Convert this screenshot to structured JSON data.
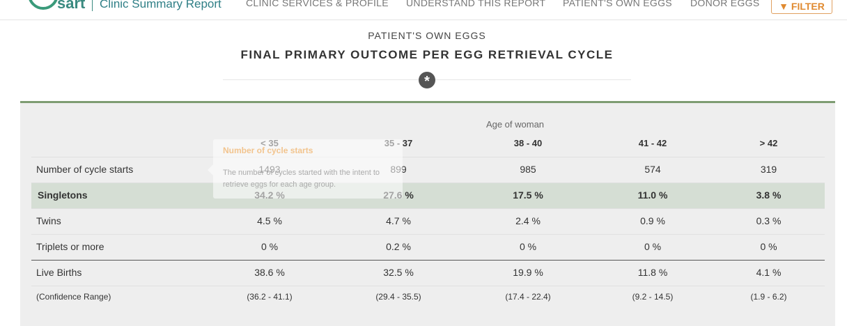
{
  "header": {
    "logo": "sart",
    "report": "Clinic Summary Report",
    "nav": [
      "CLINIC SERVICES & PROFILE",
      "UNDERSTAND THIS REPORT",
      "PATIENT'S OWN EGGS",
      "DONOR EGGS"
    ],
    "filter": "FILTER"
  },
  "section": {
    "subtitle": "PATIENT'S OWN EGGS",
    "title": "FINAL PRIMARY OUTCOME PER EGG RETRIEVAL CYCLE"
  },
  "table": {
    "group_header": "Age of woman",
    "columns": [
      "< 35",
      "35 - 37",
      "38 - 40",
      "41 - 42",
      "> 42"
    ],
    "rows": [
      {
        "label": "Number of cycle starts",
        "cells": [
          "1493",
          "899",
          "985",
          "574",
          "319"
        ]
      },
      {
        "label": "Singletons",
        "cells": [
          "34.2 %",
          "27.6 %",
          "17.5 %",
          "11.0 %",
          "3.8 %"
        ]
      },
      {
        "label": "Twins",
        "cells": [
          "4.5 %",
          "4.7 %",
          "2.4 %",
          "0.9 %",
          "0.3 %"
        ]
      },
      {
        "label": "Triplets or more",
        "cells": [
          "0 %",
          "0.2 %",
          "0 %",
          "0 %",
          "0 %"
        ]
      },
      {
        "label": "Live Births",
        "cells": [
          "38.6 %",
          "32.5 %",
          "19.9 %",
          "11.8 %",
          "4.1 %"
        ]
      },
      {
        "label": "(Confidence Range)",
        "cells": [
          "(36.2 - 41.1)",
          "(29.4 - 35.5)",
          "(17.4 - 22.4)",
          "(9.2 - 14.5)",
          "(1.9 - 6.2)"
        ]
      }
    ]
  },
  "tooltip": {
    "title": "Number of cycle starts",
    "text": "The number of cycles started with the intent to retrieve eggs for each age group."
  }
}
